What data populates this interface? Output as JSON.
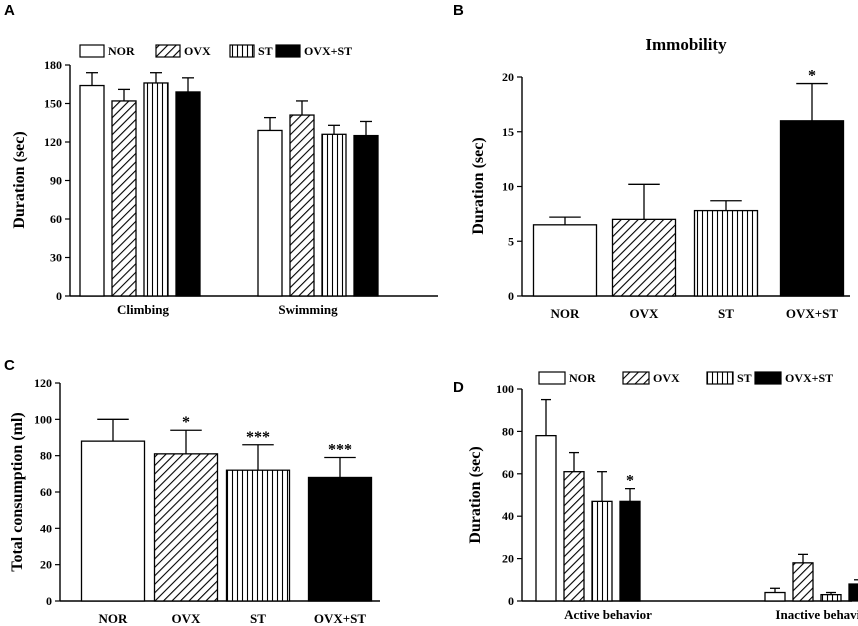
{
  "chart_data": [
    {
      "panel": "A",
      "type": "bar",
      "title": "",
      "ylabel": "Duration (sec)",
      "xlabel": "",
      "ylim": [
        0,
        180
      ],
      "yticks": [
        0,
        30,
        60,
        90,
        120,
        150,
        180
      ],
      "categories": [
        "Climbing",
        "Swimming"
      ],
      "legend": "top",
      "series": [
        {
          "name": "NOR",
          "pattern": "white",
          "values": [
            164,
            129
          ],
          "errors": [
            10,
            10
          ]
        },
        {
          "name": "OVX",
          "pattern": "diag",
          "values": [
            152,
            141
          ],
          "errors": [
            9,
            11
          ]
        },
        {
          "name": "ST",
          "pattern": "vert",
          "values": [
            166,
            126
          ],
          "errors": [
            8,
            7
          ]
        },
        {
          "name": "OVX+ST",
          "pattern": "black",
          "values": [
            159,
            125
          ],
          "errors": [
            11,
            11
          ]
        }
      ],
      "annotations": []
    },
    {
      "panel": "B",
      "type": "bar",
      "title": "Immobility",
      "ylabel": "Duration (sec)",
      "xlabel": "",
      "ylim": [
        0,
        20
      ],
      "yticks": [
        0,
        5,
        10,
        15,
        20
      ],
      "categories": [
        "NOR",
        "OVX",
        "ST",
        "OVX+ST"
      ],
      "patterns": [
        "white",
        "diag",
        "vert",
        "black"
      ],
      "values": [
        6.5,
        7.0,
        7.8,
        16.0
      ],
      "errors": [
        0.7,
        3.2,
        0.9,
        3.4
      ],
      "annotations": [
        {
          "index": 3,
          "text": "*"
        }
      ]
    },
    {
      "panel": "C",
      "type": "bar",
      "title": "",
      "ylabel": "Total consumption (ml)",
      "xlabel": "",
      "ylim": [
        0,
        120
      ],
      "yticks": [
        0,
        20,
        40,
        60,
        80,
        100,
        120
      ],
      "categories": [
        "NOR",
        "OVX",
        "ST",
        "OVX+ST"
      ],
      "patterns": [
        "white",
        "diag",
        "vert",
        "black"
      ],
      "values": [
        88,
        81,
        72,
        68
      ],
      "errors": [
        12,
        13,
        14,
        11
      ],
      "annotations": [
        {
          "index": 1,
          "text": "*"
        },
        {
          "index": 2,
          "text": "***"
        },
        {
          "index": 3,
          "text": "***"
        }
      ]
    },
    {
      "panel": "D",
      "type": "bar",
      "title": "",
      "ylabel": "Duration (sec)",
      "xlabel": "",
      "ylim": [
        0,
        100
      ],
      "yticks": [
        0,
        20,
        40,
        60,
        80,
        100
      ],
      "categories": [
        "Active behavior",
        "Inactive behavior"
      ],
      "legend": "top",
      "series": [
        {
          "name": "NOR",
          "pattern": "white",
          "values": [
            78,
            4
          ],
          "errors": [
            17,
            2
          ]
        },
        {
          "name": "OVX",
          "pattern": "diag",
          "values": [
            61,
            18
          ],
          "errors": [
            9,
            4
          ]
        },
        {
          "name": "ST",
          "pattern": "vert",
          "values": [
            47,
            3
          ],
          "errors": [
            14,
            1
          ]
        },
        {
          "name": "OVX+ST",
          "pattern": "black",
          "values": [
            47,
            8
          ],
          "errors": [
            6,
            2
          ]
        }
      ],
      "annotations": [
        {
          "series": 3,
          "category": 0,
          "text": "*"
        }
      ]
    }
  ]
}
